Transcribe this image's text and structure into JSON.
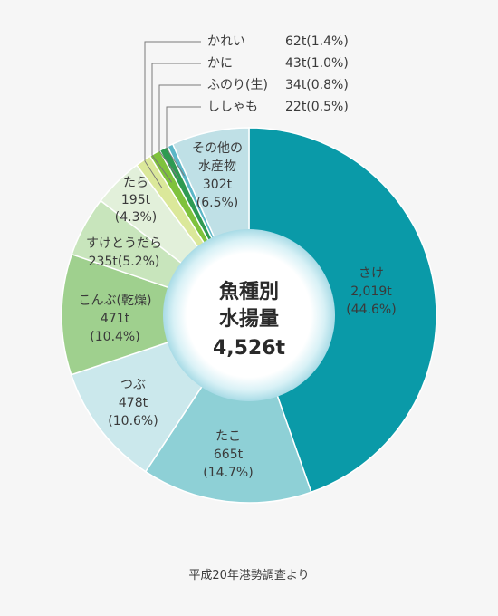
{
  "chart_data": {
    "type": "pie",
    "center_label": [
      "魚種別",
      "水揚量",
      "4,526t"
    ],
    "source": "平成20年港勢調査より",
    "slices": [
      {
        "name": "さけ",
        "value_text": "2,019t",
        "pct_text": "(44.6%)",
        "value": 2019,
        "percent": 44.6,
        "color": "#0a9aa8"
      },
      {
        "name": "たこ",
        "value_text": "665t",
        "pct_text": "(14.7%)",
        "value": 665,
        "percent": 14.7,
        "color": "#8ed0d6"
      },
      {
        "name": "つぶ",
        "value_text": "478t",
        "pct_text": "(10.6%)",
        "value": 478,
        "percent": 10.6,
        "color": "#cbe8ec"
      },
      {
        "name": "こんぶ(乾燥)",
        "value_text": "471t",
        "pct_text": "(10.4%)",
        "value": 471,
        "percent": 10.4,
        "color": "#9fd08e"
      },
      {
        "name": "すけとうだら",
        "value_text": "235t(5.2%)",
        "pct_text": "",
        "value": 235,
        "percent": 5.2,
        "color": "#c8e5bc"
      },
      {
        "name": "たら",
        "value_text": "195t",
        "pct_text": "(4.3%)",
        "value": 195,
        "percent": 4.3,
        "color": "#e2f0da"
      },
      {
        "name": "かれい",
        "value_text": "62t(1.4%)",
        "pct_text": "",
        "value": 62,
        "percent": 1.4,
        "color": "#dbe89a"
      },
      {
        "name": "かに",
        "value_text": "43t(1.0%)",
        "pct_text": "",
        "value": 43,
        "percent": 1.0,
        "color": "#7fc23c"
      },
      {
        "name": "ふのり(生)",
        "value_text": "34t(0.8%)",
        "pct_text": "",
        "value": 34,
        "percent": 0.8,
        "color": "#2f9a52"
      },
      {
        "name": "ししゃも",
        "value_text": "22t(0.5%)",
        "pct_text": "",
        "value": 22,
        "percent": 0.5,
        "color": "#5bb6c6"
      },
      {
        "name": "その他の水産物",
        "value_text": "302t",
        "pct_text": "(6.5%)",
        "value": 302,
        "percent": 6.5,
        "color": "#bfe0e6"
      }
    ]
  }
}
